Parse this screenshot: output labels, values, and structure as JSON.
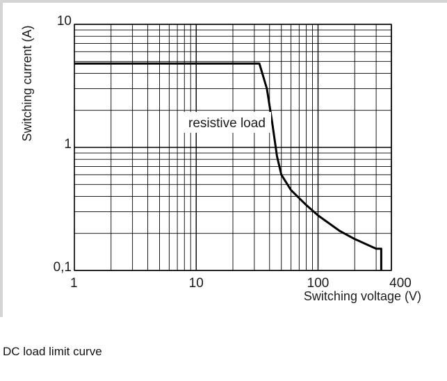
{
  "caption": "DC load limit curve",
  "chart_data": {
    "type": "line",
    "title": "",
    "xlabel": "Switching voltage (V)",
    "ylabel": "Switching current (A)",
    "xscale": "log",
    "yscale": "log",
    "xlim": [
      1,
      400
    ],
    "ylim": [
      0.1,
      10
    ],
    "grid": true,
    "x_tick_labels": [
      "1",
      "10",
      "100",
      "400"
    ],
    "y_tick_labels": [
      "0,1",
      "1",
      "10"
    ],
    "annotation": "resistive load",
    "series": [
      {
        "x": [
          1,
          33,
          38,
          42,
          46,
          50,
          60,
          80,
          100,
          150,
          200,
          300,
          330,
          330
        ],
        "y": [
          4.8,
          4.8,
          3.0,
          1.6,
          0.85,
          0.6,
          0.45,
          0.34,
          0.28,
          0.21,
          0.18,
          0.15,
          0.15,
          0.1
        ]
      }
    ],
    "colors": {
      "line": "#000000",
      "grid": "#000000"
    }
  }
}
